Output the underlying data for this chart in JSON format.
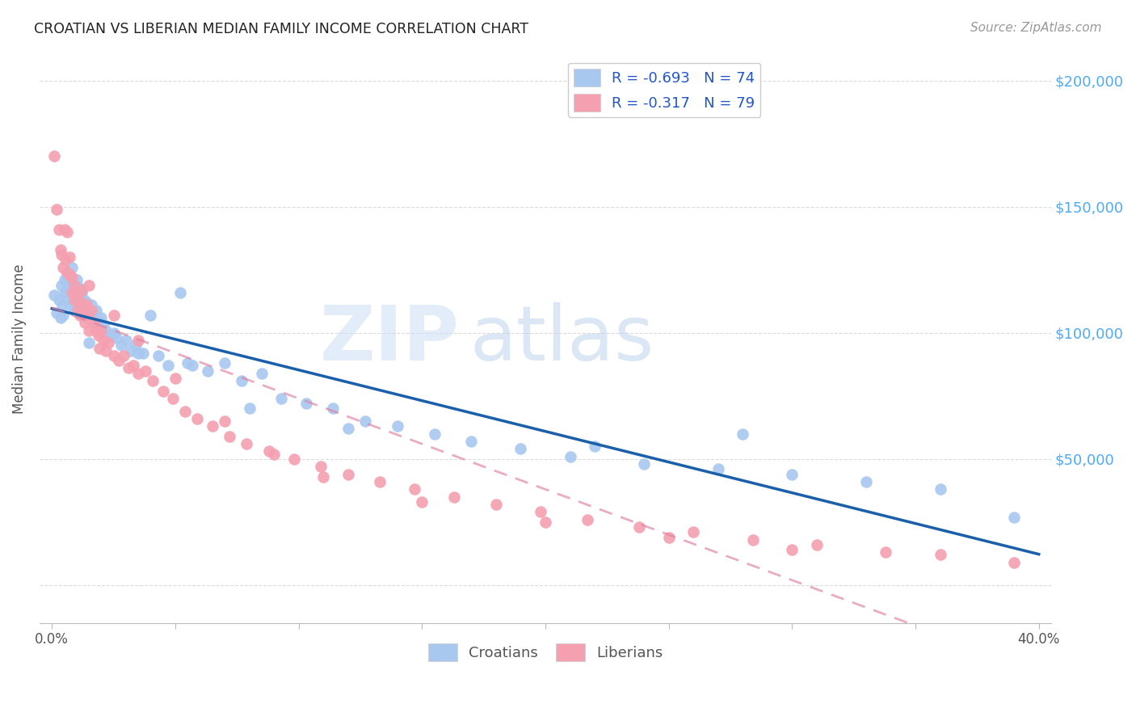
{
  "title": "CROATIAN VS LIBERIAN MEDIAN FAMILY INCOME CORRELATION CHART",
  "source": "Source: ZipAtlas.com",
  "ylabel": "Median Family Income",
  "watermark_zip": "ZIP",
  "watermark_atlas": "atlas",
  "background_color": "#ffffff",
  "legend_text_color": "#2255cc",
  "croatian_dot_color": "#a8c8f0",
  "liberian_dot_color": "#f4a0b0",
  "croatian_line_color": "#1a5faa",
  "liberian_line_color": "#e080a0",
  "ytick_color": "#4dabf7",
  "croatian_R": -0.693,
  "croatian_N": 74,
  "liberian_R": -0.317,
  "liberian_N": 79,
  "xmin": 0.0,
  "xmax": 0.4,
  "ymin": -15000,
  "ymax": 210000,
  "yticks": [
    0,
    50000,
    100000,
    150000,
    200000
  ],
  "ytick_labels": [
    "",
    "$50,000",
    "$100,000",
    "$150,000",
    "$200,000"
  ],
  "croatian_x": [
    0.001,
    0.002,
    0.003,
    0.0035,
    0.004,
    0.0042,
    0.0045,
    0.005,
    0.0052,
    0.006,
    0.006,
    0.0065,
    0.007,
    0.0072,
    0.008,
    0.0082,
    0.009,
    0.0092,
    0.01,
    0.0102,
    0.011,
    0.0112,
    0.012,
    0.0122,
    0.013,
    0.014,
    0.015,
    0.0152,
    0.016,
    0.017,
    0.018,
    0.019,
    0.02,
    0.021,
    0.022,
    0.024,
    0.026,
    0.028,
    0.03,
    0.032,
    0.034,
    0.037,
    0.04,
    0.043,
    0.047,
    0.052,
    0.057,
    0.063,
    0.07,
    0.077,
    0.085,
    0.093,
    0.103,
    0.114,
    0.127,
    0.14,
    0.155,
    0.17,
    0.19,
    0.21,
    0.24,
    0.27,
    0.3,
    0.33,
    0.36,
    0.39,
    0.025,
    0.035,
    0.055,
    0.08,
    0.12,
    0.22,
    0.28,
    0.015
  ],
  "croatian_y": [
    115000,
    108000,
    113000,
    106000,
    119000,
    111000,
    107000,
    121000,
    116000,
    123000,
    117000,
    113000,
    119000,
    111000,
    126000,
    120000,
    116000,
    109000,
    121000,
    114000,
    118000,
    110000,
    116000,
    108000,
    113000,
    112000,
    109000,
    105000,
    111000,
    107000,
    109000,
    105000,
    106000,
    103000,
    101000,
    99000,
    98000,
    95000,
    97000,
    93000,
    95000,
    92000,
    107000,
    91000,
    87000,
    116000,
    87000,
    85000,
    88000,
    81000,
    84000,
    74000,
    72000,
    70000,
    65000,
    63000,
    60000,
    57000,
    54000,
    51000,
    48000,
    46000,
    44000,
    41000,
    38000,
    27000,
    100000,
    92000,
    88000,
    70000,
    62000,
    55000,
    60000,
    96000
  ],
  "liberian_x": [
    0.001,
    0.002,
    0.003,
    0.0035,
    0.004,
    0.0045,
    0.005,
    0.0055,
    0.006,
    0.0062,
    0.007,
    0.0072,
    0.008,
    0.0082,
    0.009,
    0.0092,
    0.01,
    0.0105,
    0.011,
    0.0115,
    0.012,
    0.0122,
    0.013,
    0.0132,
    0.014,
    0.0145,
    0.015,
    0.016,
    0.017,
    0.018,
    0.019,
    0.0192,
    0.02,
    0.021,
    0.022,
    0.023,
    0.025,
    0.027,
    0.029,
    0.031,
    0.033,
    0.035,
    0.038,
    0.041,
    0.045,
    0.049,
    0.054,
    0.059,
    0.065,
    0.072,
    0.079,
    0.088,
    0.098,
    0.109,
    0.12,
    0.133,
    0.147,
    0.163,
    0.18,
    0.198,
    0.217,
    0.238,
    0.26,
    0.284,
    0.31,
    0.338,
    0.015,
    0.025,
    0.035,
    0.05,
    0.07,
    0.09,
    0.11,
    0.15,
    0.2,
    0.25,
    0.3,
    0.36,
    0.39
  ],
  "liberian_y": [
    170000,
    149000,
    141000,
    133000,
    131000,
    126000,
    141000,
    129000,
    140000,
    124000,
    130000,
    123000,
    122000,
    116000,
    119000,
    113000,
    116000,
    109000,
    113000,
    107000,
    117000,
    111000,
    109000,
    104000,
    111000,
    106000,
    101000,
    109000,
    104000,
    101000,
    99000,
    94000,
    101000,
    97000,
    93000,
    96000,
    91000,
    89000,
    91000,
    86000,
    87000,
    84000,
    85000,
    81000,
    77000,
    74000,
    69000,
    66000,
    63000,
    59000,
    56000,
    53000,
    50000,
    47000,
    44000,
    41000,
    38000,
    35000,
    32000,
    29000,
    26000,
    23000,
    21000,
    18000,
    16000,
    13000,
    119000,
    107000,
    97000,
    82000,
    65000,
    52000,
    43000,
    33000,
    25000,
    19000,
    14000,
    12000,
    9000
  ]
}
